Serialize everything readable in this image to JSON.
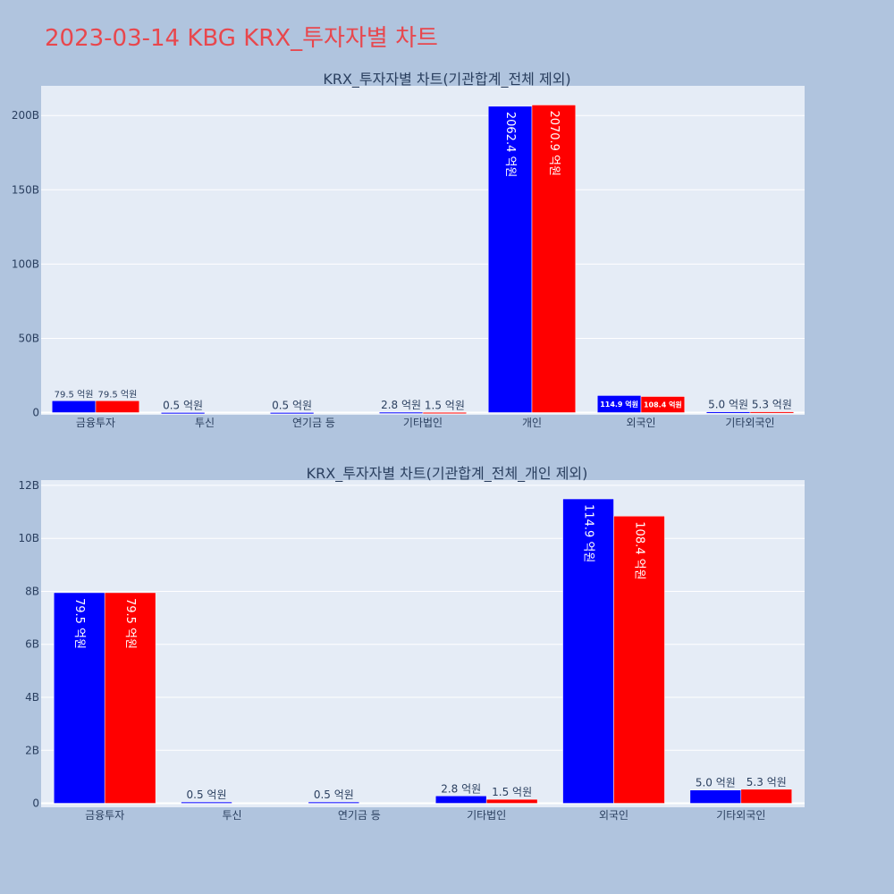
{
  "page": {
    "title": "2023-03-14 KBG KRX_투자자별 차트"
  },
  "colors": {
    "buy": "#0000ff",
    "sell": "#ff0000",
    "plot_bg": "#e5ecf6",
    "page_bg": "#b0c4de",
    "text": "#2a3f5f"
  },
  "chart_data": [
    {
      "type": "bar",
      "title": "KRX_투자자별 차트(기관합계_전체 제외)",
      "categories": [
        "금융투자",
        "투신",
        "연기금 등",
        "기타법인",
        "개인",
        "외국인",
        "기타외국인"
      ],
      "series": [
        {
          "color": "#0000ff",
          "values": [
            7950000000,
            50000000,
            50000000,
            280000000,
            206240000000,
            11490000000,
            500000000
          ],
          "labels": [
            "79.5 억원",
            "0.5 억원",
            "0.5 억원",
            "2.8 억원",
            "2062.4 억원",
            "114.9 억원",
            "5.0 억원"
          ]
        },
        {
          "color": "#ff0000",
          "values": [
            7950000000,
            0,
            0,
            150000000,
            207090000000,
            10840000000,
            530000000
          ],
          "labels": [
            "79.5 억원",
            "",
            "",
            "1.5 억원",
            "2070.9 억원",
            "108.4 억원",
            "5.3 억원"
          ]
        }
      ],
      "yticks": [
        0,
        50000000000,
        100000000000,
        150000000000,
        200000000000
      ],
      "ytick_labels": [
        "0",
        "50B",
        "100B",
        "150B",
        "200B"
      ],
      "ylim": [
        -1500000000,
        220000000000
      ],
      "grid": true
    },
    {
      "type": "bar",
      "title": "KRX_투자자별 차트(기관합계_전체_개인 제외)",
      "categories": [
        "금융투자",
        "투신",
        "연기금 등",
        "기타법인",
        "외국인",
        "기타외국인"
      ],
      "series": [
        {
          "color": "#0000ff",
          "values": [
            7950000000,
            50000000,
            50000000,
            280000000,
            11490000000,
            500000000
          ],
          "labels": [
            "79.5 억원",
            "0.5 억원",
            "0.5 억원",
            "2.8 억원",
            "114.9 억원",
            "5.0 억원"
          ]
        },
        {
          "color": "#ff0000",
          "values": [
            7950000000,
            0,
            0,
            150000000,
            10840000000,
            530000000
          ],
          "labels": [
            "79.5 억원",
            "",
            "",
            "1.5 억원",
            "108.4 억원",
            "5.3 억원"
          ]
        }
      ],
      "yticks": [
        0,
        2000000000,
        4000000000,
        6000000000,
        8000000000,
        10000000000,
        12000000000
      ],
      "ytick_labels": [
        "0",
        "2B",
        "4B",
        "6B",
        "8B",
        "10B",
        "12B"
      ],
      "ylim": [
        -150000000,
        12200000000
      ],
      "grid": true
    }
  ]
}
